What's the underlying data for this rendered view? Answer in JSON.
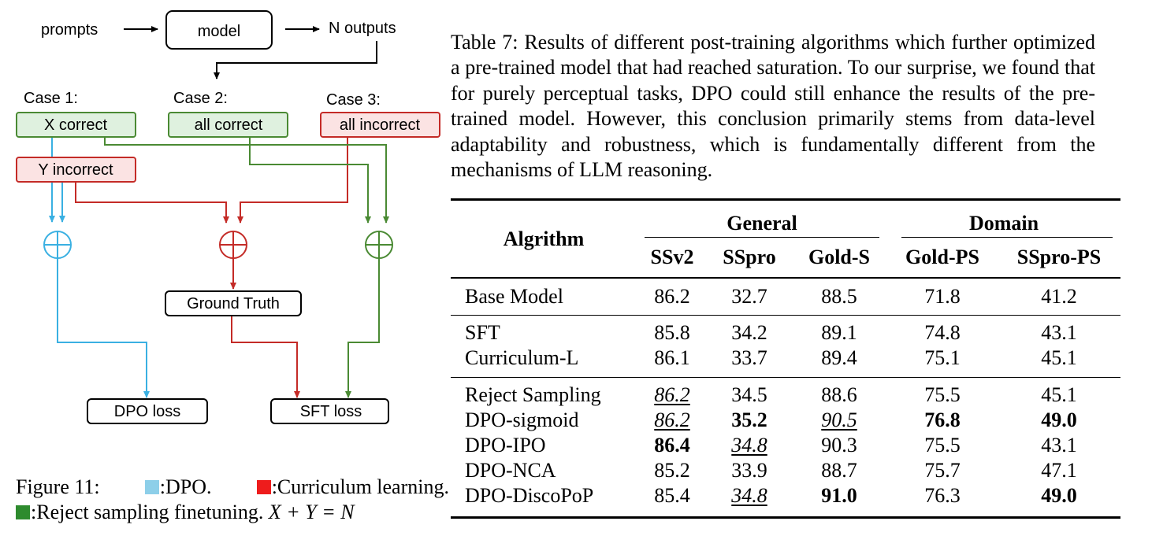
{
  "figure": {
    "top_labels": {
      "prompts": "prompts",
      "model": "model",
      "outputs": "N outputs"
    },
    "cases": [
      {
        "title": "Case 1:",
        "box": "X correct"
      },
      {
        "title": "Case 2:",
        "box": "all correct"
      },
      {
        "title": "Case 3:",
        "box": "all incorrect"
      }
    ],
    "y_incorrect": "Y incorrect",
    "ground_truth": "Ground Truth",
    "dpo_loss": "DPO loss",
    "sft_loss": "SFT loss",
    "colors": {
      "dpo": "#3ab0e2",
      "curriculum": "#c42b27",
      "reject": "#4a8a33",
      "green_fill": "#dff1df",
      "red_fill": "#fbe3e3"
    }
  },
  "figure_caption": {
    "figure_label": "Figure 11:",
    "dpo": ":DPO.",
    "curriculum": ":Curriculum learning.",
    "reject": ":Reject sampling finetuning.",
    "equation": "X + Y = N"
  },
  "table_caption": "Table 7: Results of different post-training algorithms which further optimized a pre-trained model that had reached saturation. To our surprise, we found that for purely perceptual tasks, DPO could still enhance the results of the pre-trained model. However, this conclusion primarily stems from data-level adaptability and robustness, which is fundamentally different from the mechanisms of LLM reasoning.",
  "table": {
    "algorithm_header": "Algrithm",
    "group_general": "General",
    "group_domain": "Domain",
    "columns": [
      "SSv2",
      "SSpro",
      "Gold-S",
      "Gold-PS",
      "SSpro-PS"
    ],
    "rows": [
      {
        "name": "Base Model",
        "values": [
          "86.2",
          "32.7",
          "88.5",
          "71.8",
          "41.2"
        ]
      },
      {
        "name": "SFT",
        "values": [
          "85.8",
          "34.2",
          "89.1",
          "74.8",
          "43.1"
        ]
      },
      {
        "name": "Curriculum-L",
        "values": [
          "86.1",
          "33.7",
          "89.4",
          "75.1",
          "45.1"
        ]
      },
      {
        "name": "Reject Sampling",
        "values": [
          "86.2",
          "34.5",
          "88.6",
          "75.5",
          "45.1"
        ]
      },
      {
        "name": "DPO-sigmoid",
        "values": [
          "86.2",
          "35.2",
          "90.5",
          "76.8",
          "49.0"
        ]
      },
      {
        "name": "DPO-IPO",
        "values": [
          "86.4",
          "34.8",
          "90.3",
          "75.5",
          "43.1"
        ]
      },
      {
        "name": "DPO-NCA",
        "values": [
          "85.2",
          "33.9",
          "88.7",
          "75.7",
          "47.1"
        ]
      },
      {
        "name": "DPO-DiscoPoP",
        "values": [
          "85.4",
          "34.8",
          "91.0",
          "76.3",
          "49.0"
        ]
      }
    ]
  }
}
